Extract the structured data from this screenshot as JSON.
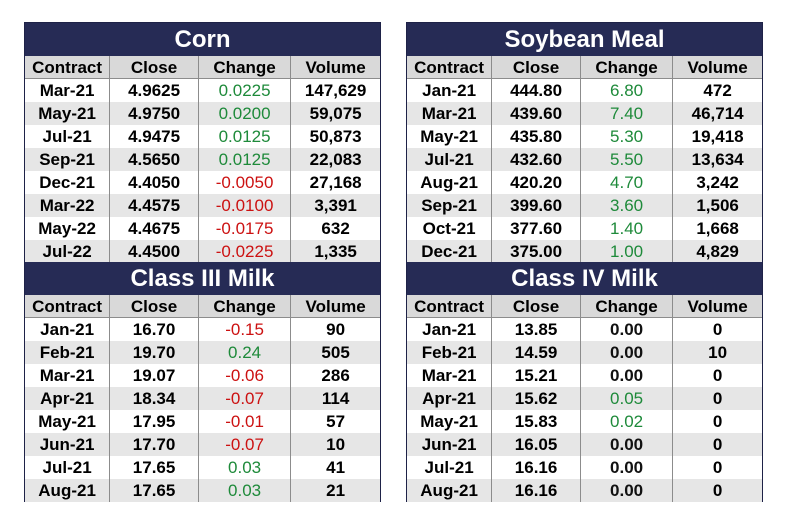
{
  "colors": {
    "header_bg": "#262b55",
    "positive": "#1e8a3a",
    "negative": "#cc1111"
  },
  "columns": [
    "Contract",
    "Close",
    "Change",
    "Volume"
  ],
  "tables": {
    "corn": {
      "title": "Corn",
      "rows": [
        [
          "Mar-21",
          "4.9625",
          "0.0225",
          "147,629"
        ],
        [
          "May-21",
          "4.9750",
          "0.0200",
          "59,075"
        ],
        [
          "Jul-21",
          "4.9475",
          "0.0125",
          "50,873"
        ],
        [
          "Sep-21",
          "4.5650",
          "0.0125",
          "22,083"
        ],
        [
          "Dec-21",
          "4.4050",
          "-0.0050",
          "27,168"
        ],
        [
          "Mar-22",
          "4.4575",
          "-0.0100",
          "3,391"
        ],
        [
          "May-22",
          "4.4675",
          "-0.0175",
          "632"
        ],
        [
          "Jul-22",
          "4.4500",
          "-0.0225",
          "1,335"
        ]
      ]
    },
    "soy": {
      "title": "Soybean Meal",
      "rows": [
        [
          "Jan-21",
          "444.80",
          "6.80",
          "472"
        ],
        [
          "Mar-21",
          "439.60",
          "7.40",
          "46,714"
        ],
        [
          "May-21",
          "435.80",
          "5.30",
          "19,418"
        ],
        [
          "Jul-21",
          "432.60",
          "5.50",
          "13,634"
        ],
        [
          "Aug-21",
          "420.20",
          "4.70",
          "3,242"
        ],
        [
          "Sep-21",
          "399.60",
          "3.60",
          "1,506"
        ],
        [
          "Oct-21",
          "377.60",
          "1.40",
          "1,668"
        ],
        [
          "Dec-21",
          "375.00",
          "1.00",
          "4,829"
        ]
      ]
    },
    "c3": {
      "title": "Class III Milk",
      "rows": [
        [
          "Jan-21",
          "16.70",
          "-0.15",
          "90"
        ],
        [
          "Feb-21",
          "19.70",
          "0.24",
          "505"
        ],
        [
          "Mar-21",
          "19.07",
          "-0.06",
          "286"
        ],
        [
          "Apr-21",
          "18.34",
          "-0.07",
          "114"
        ],
        [
          "May-21",
          "17.95",
          "-0.01",
          "57"
        ],
        [
          "Jun-21",
          "17.70",
          "-0.07",
          "10"
        ],
        [
          "Jul-21",
          "17.65",
          "0.03",
          "41"
        ],
        [
          "Aug-21",
          "17.65",
          "0.03",
          "21"
        ]
      ]
    },
    "c4": {
      "title": "Class IV Milk",
      "rows": [
        [
          "Jan-21",
          "13.85",
          "0.00",
          "0"
        ],
        [
          "Feb-21",
          "14.59",
          "0.00",
          "10"
        ],
        [
          "Mar-21",
          "15.21",
          "0.00",
          "0"
        ],
        [
          "Apr-21",
          "15.62",
          "0.05",
          "0"
        ],
        [
          "May-21",
          "15.83",
          "0.02",
          "0"
        ],
        [
          "Jun-21",
          "16.05",
          "0.00",
          "0"
        ],
        [
          "Jul-21",
          "16.16",
          "0.00",
          "0"
        ],
        [
          "Aug-21",
          "16.16",
          "0.00",
          "0"
        ]
      ]
    }
  }
}
